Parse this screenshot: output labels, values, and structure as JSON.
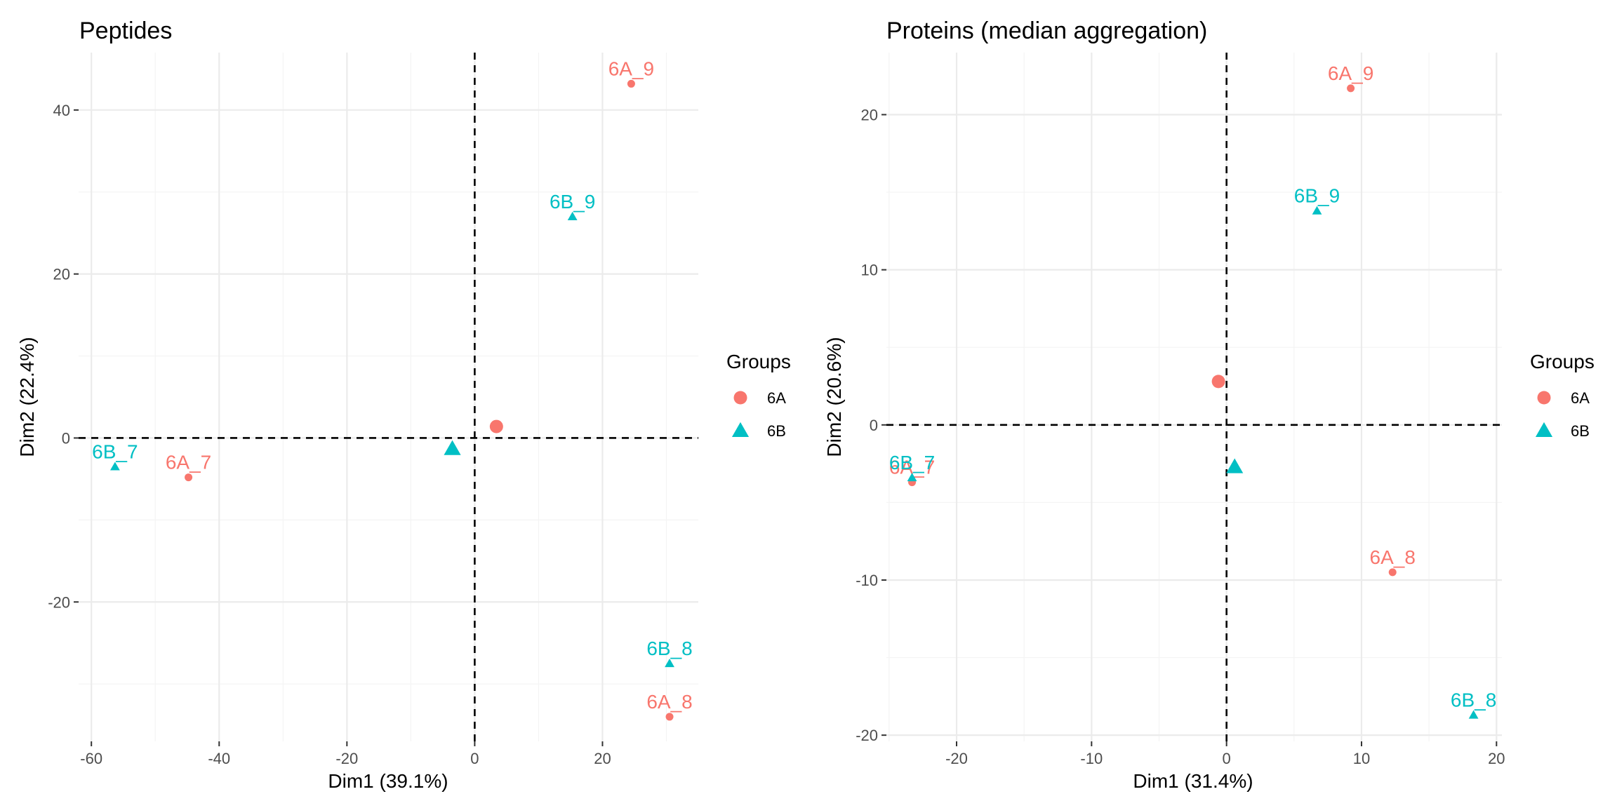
{
  "chart_data": [
    {
      "type": "scatter",
      "title": "Peptides",
      "xlabel": "Dim1 (39.1%)",
      "ylabel": "Dim2 (22.4%)",
      "xlim": [
        -62,
        35
      ],
      "ylim": [
        -37,
        47
      ],
      "x_ticks": [
        -60,
        -40,
        -20,
        0,
        20
      ],
      "y_ticks": [
        -20,
        0,
        20,
        40
      ],
      "grid": true,
      "ref_lines": {
        "x": 0,
        "y": 0
      },
      "legend_title": "Groups",
      "legend_position": "right",
      "series": [
        {
          "name": "6A",
          "color": "#F8766D",
          "shape": "circle",
          "points": [
            {
              "label": "6A_9",
              "x": 24.5,
              "y": 43.2
            },
            {
              "label": "6A_7",
              "x": -44.8,
              "y": -4.8
            },
            {
              "label": "6A_8",
              "x": 30.5,
              "y": -34.0
            }
          ],
          "centroid": {
            "x": 3.4,
            "y": 1.4
          }
        },
        {
          "name": "6B",
          "color": "#00BFC4",
          "shape": "triangle",
          "points": [
            {
              "label": "6B_9",
              "x": 15.3,
              "y": 27.0
            },
            {
              "label": "6B_7",
              "x": -56.3,
              "y": -3.5
            },
            {
              "label": "6B_8",
              "x": 30.5,
              "y": -27.5
            }
          ],
          "centroid": {
            "x": -3.5,
            "y": -1.3
          }
        }
      ]
    },
    {
      "type": "scatter",
      "title": "Proteins (median aggregation)",
      "xlabel": "Dim1 (31.4%)",
      "ylabel": "Dim2 (20.6%)",
      "xlim": [
        -25.2,
        20.4
      ],
      "ylim": [
        -20.4,
        24.0
      ],
      "x_ticks": [
        -20,
        -10,
        0,
        10,
        20
      ],
      "y_ticks": [
        -20,
        -10,
        0,
        10,
        20
      ],
      "grid": true,
      "ref_lines": {
        "x": 0,
        "y": 0
      },
      "legend_title": "Groups",
      "legend_position": "right",
      "series": [
        {
          "name": "6A",
          "color": "#F8766D",
          "shape": "circle",
          "points": [
            {
              "label": "6A_9",
              "x": 9.2,
              "y": 21.7
            },
            {
              "label": "6A_7",
              "x": -23.3,
              "y": -3.7
            },
            {
              "label": "6A_8",
              "x": 12.3,
              "y": -9.5
            }
          ],
          "centroid": {
            "x": -0.6,
            "y": 2.8
          }
        },
        {
          "name": "6B",
          "color": "#00BFC4",
          "shape": "triangle",
          "points": [
            {
              "label": "6B_9",
              "x": 6.7,
              "y": 13.8
            },
            {
              "label": "6B_7",
              "x": -23.3,
              "y": -3.4
            },
            {
              "label": "6B_8",
              "x": 18.3,
              "y": -18.7
            }
          ],
          "centroid": {
            "x": 0.6,
            "y": -2.7
          }
        }
      ]
    }
  ]
}
